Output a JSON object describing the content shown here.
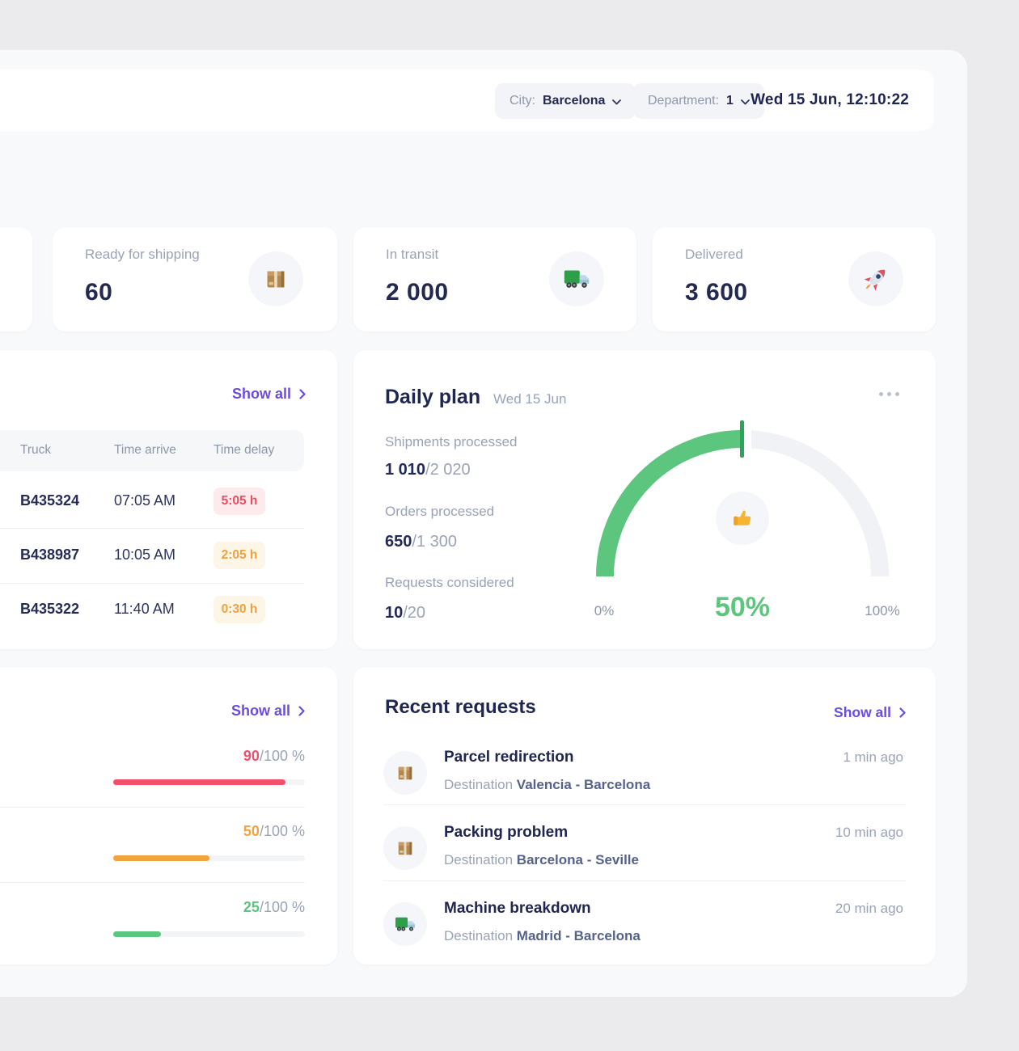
{
  "header": {
    "filters": [
      {
        "label": "City:",
        "value": "Barcelona"
      },
      {
        "label": "Department:",
        "value": "1"
      }
    ],
    "datetime": "Wed 15 Jun, 12:10:22"
  },
  "stats_cards": [
    {
      "label": "Ready for shipping",
      "value": "60",
      "icon": "package-icon"
    },
    {
      "label": "In transit",
      "value": "2 000",
      "icon": "truck-icon"
    },
    {
      "label": "Delivered",
      "value": "3 600",
      "icon": "rocket-icon"
    }
  ],
  "trucks_table": {
    "show_all_label": "Show all",
    "columns": [
      "Truck",
      "Time arrive",
      "Time delay"
    ],
    "rows": [
      {
        "truck": "B435324",
        "time_arrive": "07:05 AM",
        "time_delay": "5:05 h",
        "badge_bg": "#fceaec",
        "badge_color": "#ee4d5f"
      },
      {
        "truck": "B438987",
        "time_arrive": "10:05 AM",
        "time_delay": "2:05 h",
        "badge_bg": "#fdf6e7",
        "badge_color": "#f0a13f"
      },
      {
        "truck": "B435322",
        "time_arrive": "11:40 AM",
        "time_delay": "0:30 h",
        "badge_bg": "#fdf6e7",
        "badge_color": "#f0a13f"
      }
    ]
  },
  "daily_plan": {
    "title": "Daily plan",
    "date": "Wed 15 Jun",
    "metrics": [
      {
        "label": "Shipments processed",
        "value": "1 010",
        "total": "/2 020"
      },
      {
        "label": "Orders processed",
        "value": "650",
        "total": "/1 300"
      },
      {
        "label": "Requests considered",
        "value": "10",
        "total": "/20"
      }
    ],
    "gauge": {
      "min_label": "0%",
      "value_label": "50%",
      "max_label": "100%",
      "percent": 50,
      "color": "#5cc57e",
      "icon": "thumbs-up-icon"
    }
  },
  "progress_card": {
    "show_all_label": "Show all",
    "rows": [
      {
        "value": "90",
        "total": "/100 %",
        "percent": 90,
        "color": "#f2506a"
      },
      {
        "value": "50",
        "total": "/100 %",
        "percent": 50,
        "color": "#f2a33c"
      },
      {
        "value": "25",
        "total": "/100 %",
        "percent": 25,
        "color": "#5cc57e"
      }
    ]
  },
  "recent_requests": {
    "title": "Recent requests",
    "show_all_label": "Show all",
    "items": [
      {
        "title": "Parcel redirection",
        "destination_label": "Destination",
        "route": "Valencia - Barcelona",
        "time_ago": "1 min ago",
        "icon": "package-icon"
      },
      {
        "title": "Packing problem",
        "destination_label": "Destination",
        "route": "Barcelona - Seville",
        "time_ago": "10 min ago",
        "icon": "package-icon"
      },
      {
        "title": "Machine breakdown",
        "destination_label": "Destination",
        "route": "Madrid - Barcelona",
        "time_ago": "20 min ago",
        "icon": "truck-icon"
      }
    ]
  }
}
